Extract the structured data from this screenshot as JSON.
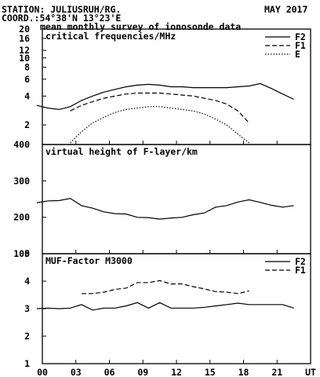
{
  "header": {
    "station": "STATION: JULIUSRUH/RG.",
    "coord": "COORD.:54°38'N 13°23'E",
    "date": "MAY 2017",
    "title": "mean monthly survey of ionosonde data"
  },
  "x_axis": {
    "ticks": [
      "00",
      "03",
      "06",
      "09",
      "12",
      "15",
      "18",
      "21",
      "UT"
    ],
    "tick_hours": [
      0,
      3,
      6,
      9,
      12,
      15,
      18,
      21,
      24
    ]
  },
  "chart_data": [
    {
      "type": "line",
      "title": "critical frequencies/MHz",
      "yscale": "log",
      "ylim": [
        1.25,
        20
      ],
      "yticks": [
        2,
        4,
        6,
        8,
        10,
        12,
        16,
        20
      ],
      "x": [
        0,
        1,
        2,
        3,
        4,
        5,
        6,
        7,
        8,
        9,
        10,
        11,
        12,
        13,
        14,
        15,
        16,
        17,
        18,
        19,
        20,
        21,
        22,
        23
      ],
      "series": [
        {
          "name": "F2",
          "dash": "solid",
          "values": [
            3.2,
            3.0,
            2.9,
            3.1,
            3.6,
            4.0,
            4.4,
            4.7,
            5.0,
            5.2,
            5.3,
            5.2,
            5.0,
            5.0,
            4.9,
            4.9,
            4.9,
            4.9,
            5.0,
            5.1,
            5.4,
            4.8,
            4.2,
            3.7
          ]
        },
        {
          "name": "F1",
          "dash": "dashed",
          "x": [
            3,
            4,
            5,
            6,
            7,
            8,
            9,
            10,
            11,
            12,
            13,
            14,
            15,
            16,
            17,
            18,
            19
          ],
          "values": [
            2.8,
            3.2,
            3.5,
            3.8,
            4.0,
            4.2,
            4.3,
            4.3,
            4.3,
            4.2,
            4.1,
            4.0,
            3.8,
            3.6,
            3.3,
            2.8,
            2.1
          ]
        },
        {
          "name": "E",
          "dash": "dotted",
          "x": [
            3,
            4,
            5,
            6,
            7,
            8,
            9,
            10,
            11,
            12,
            13,
            14,
            15,
            16,
            17,
            18,
            19
          ],
          "values": [
            1.3,
            1.7,
            2.1,
            2.4,
            2.7,
            2.9,
            3.0,
            3.1,
            3.1,
            3.0,
            2.9,
            2.8,
            2.6,
            2.3,
            2.0,
            1.6,
            1.3
          ]
        }
      ]
    },
    {
      "type": "line",
      "title": "virtual height of F-layer/km",
      "ylim": [
        100,
        400
      ],
      "yticks": [
        100,
        200,
        300,
        400
      ],
      "x": [
        0,
        1,
        2,
        3,
        4,
        5,
        6,
        7,
        8,
        9,
        10,
        11,
        12,
        13,
        14,
        15,
        16,
        17,
        18,
        19,
        20,
        21,
        22,
        23
      ],
      "series": [
        {
          "dash": "solid",
          "values": [
            240,
            245,
            246,
            252,
            232,
            225,
            215,
            210,
            209,
            200,
            199,
            195,
            198,
            200,
            207,
            212,
            228,
            232,
            242,
            248,
            241,
            233,
            228,
            232
          ]
        }
      ]
    },
    {
      "type": "line",
      "title": "MUF-Factor M3000",
      "ylim": [
        1,
        5
      ],
      "yticks": [
        1,
        2,
        3,
        4,
        5
      ],
      "x": [
        0,
        1,
        2,
        3,
        4,
        5,
        6,
        7,
        8,
        9,
        10,
        11,
        12,
        13,
        14,
        15,
        16,
        17,
        18,
        19,
        20,
        21,
        22,
        23
      ],
      "series": [
        {
          "name": "F2",
          "dash": "solid",
          "values": [
            3.0,
            3.02,
            3.0,
            3.02,
            3.15,
            2.95,
            3.02,
            3.02,
            3.1,
            3.22,
            3.02,
            3.22,
            3.02,
            3.02,
            3.02,
            3.05,
            3.1,
            3.15,
            3.2,
            3.15,
            3.15,
            3.15,
            3.15,
            3.02
          ]
        },
        {
          "name": "F1",
          "dash": "dashed",
          "x": [
            4,
            5,
            6,
            7,
            8,
            9,
            10,
            11,
            12,
            13,
            14,
            15,
            16,
            17,
            18,
            19
          ],
          "values": [
            3.55,
            3.55,
            3.6,
            3.7,
            3.75,
            3.95,
            3.95,
            4.02,
            3.9,
            3.9,
            3.8,
            3.72,
            3.62,
            3.6,
            3.55,
            3.65
          ]
        }
      ]
    }
  ]
}
